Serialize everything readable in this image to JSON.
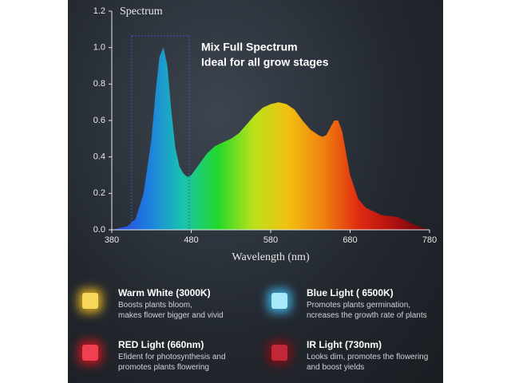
{
  "chart_data": {
    "type": "area",
    "title": "Spectrum",
    "annotations": [
      "Mix Full Spectrum",
      "Ideal for all grow stages"
    ],
    "x_label": "Wavelength (nm)",
    "x": [
      380,
      400,
      410,
      420,
      430,
      435,
      440,
      445,
      450,
      455,
      460,
      465,
      470,
      475,
      480,
      490,
      500,
      510,
      520,
      530,
      540,
      550,
      560,
      570,
      580,
      590,
      600,
      610,
      620,
      630,
      640,
      645,
      650,
      655,
      660,
      665,
      670,
      680,
      690,
      700,
      720,
      740,
      760,
      780
    ],
    "values": [
      0,
      0.02,
      0.06,
      0.2,
      0.5,
      0.75,
      0.95,
      1.0,
      0.9,
      0.65,
      0.45,
      0.35,
      0.31,
      0.29,
      0.3,
      0.36,
      0.42,
      0.46,
      0.48,
      0.5,
      0.53,
      0.58,
      0.63,
      0.67,
      0.69,
      0.7,
      0.69,
      0.66,
      0.6,
      0.55,
      0.52,
      0.51,
      0.52,
      0.56,
      0.6,
      0.6,
      0.54,
      0.3,
      0.17,
      0.12,
      0.08,
      0.07,
      0.03,
      0
    ],
    "colors": [
      "#2a3fd8",
      "#1e7be0",
      "#19c3b0",
      "#22d82a",
      "#b8e21a",
      "#f2c010",
      "#f08010",
      "#e02a10",
      "#b01010",
      "#5a0808"
    ],
    "xlim": [
      380,
      780
    ],
    "xticks": [
      380,
      480,
      580,
      680,
      780
    ],
    "ylim": [
      0,
      1.2
    ],
    "yticks": [
      {
        "value": 0,
        "label": "0.0"
      },
      0.2,
      0.4,
      0.6,
      0.8,
      {
        "value": 1,
        "label": "1.0"
      },
      1.2
    ]
  },
  "features": [
    {
      "title": "Warm White (3000K)",
      "lines": [
        "Boosts plants bloom,",
        "makes flower bigger and vivid"
      ]
    },
    {
      "title": "Blue Light ( 6500K)",
      "lines": [
        "Promotes plants germination,",
        "ncreases the growth rate of plants"
      ]
    },
    {
      "title": "RED Light (660nm)",
      "lines": [
        "Efident for photosynthesis and",
        "promotes plants flowering"
      ]
    },
    {
      "title": "IR Light (730nm)",
      "lines": [
        "Looks dim, promotes the flowering",
        "and boost yields"
      ]
    }
  ]
}
